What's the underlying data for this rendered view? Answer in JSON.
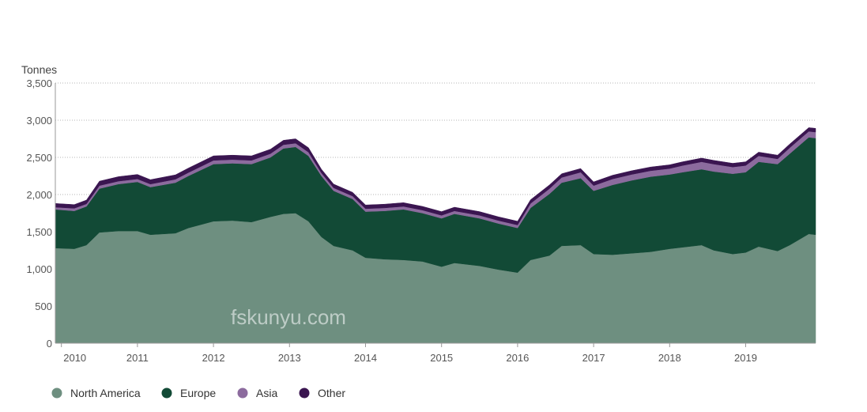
{
  "chart_data": {
    "type": "area",
    "stacked": true,
    "unit_label": "Tonnes",
    "xlabel": "",
    "ylabel": "",
    "ylim": [
      0,
      3500
    ],
    "y_ticks": [
      0,
      500,
      1000,
      1500,
      2000,
      2500,
      3000,
      3500
    ],
    "y_tick_labels": [
      "0",
      "500",
      "1,000",
      "1,500",
      "2,000",
      "2,500",
      "3,000",
      "3,500"
    ],
    "xlim": [
      2009.92,
      2019.92
    ],
    "x_ticks": [
      2010,
      2011,
      2012,
      2013,
      2014,
      2015,
      2016,
      2017,
      2018,
      2019
    ],
    "x_tick_labels": [
      "2010",
      "2011",
      "2012",
      "2013",
      "2014",
      "2015",
      "2016",
      "2017",
      "2018",
      "2019"
    ],
    "grid": "horizontal dotted",
    "legend": "bottom-left",
    "x": [
      2009.92,
      2010.17,
      2010.33,
      2010.5,
      2010.75,
      2011.0,
      2011.17,
      2011.5,
      2011.67,
      2012.0,
      2012.25,
      2012.5,
      2012.75,
      2012.92,
      2013.08,
      2013.25,
      2013.42,
      2013.58,
      2013.83,
      2014.0,
      2014.25,
      2014.5,
      2014.75,
      2015.0,
      2015.17,
      2015.5,
      2015.75,
      2016.0,
      2016.17,
      2016.42,
      2016.58,
      2016.83,
      2017.0,
      2017.25,
      2017.5,
      2017.75,
      2018.0,
      2018.17,
      2018.42,
      2018.58,
      2018.83,
      2019.0,
      2019.17,
      2019.42,
      2019.58,
      2019.83,
      2019.92
    ],
    "series": [
      {
        "name": "North America",
        "color": "#6e8f80",
        "values": [
          1280,
          1270,
          1320,
          1490,
          1510,
          1510,
          1460,
          1480,
          1550,
          1640,
          1650,
          1630,
          1700,
          1740,
          1750,
          1640,
          1430,
          1310,
          1250,
          1150,
          1130,
          1120,
          1100,
          1030,
          1080,
          1040,
          990,
          950,
          1120,
          1180,
          1310,
          1320,
          1200,
          1190,
          1210,
          1230,
          1270,
          1290,
          1320,
          1250,
          1200,
          1220,
          1300,
          1240,
          1320,
          1470,
          1460
        ]
      },
      {
        "name": "Europe",
        "color": "#124a36",
        "values": [
          520,
          510,
          520,
          590,
          630,
          660,
          640,
          680,
          700,
          770,
          770,
          780,
          800,
          880,
          890,
          880,
          820,
          740,
          690,
          620,
          650,
          680,
          650,
          650,
          660,
          640,
          620,
          600,
          700,
          830,
          850,
          900,
          850,
          940,
          980,
          1010,
          1000,
          1010,
          1020,
          1060,
          1080,
          1080,
          1140,
          1170,
          1230,
          1300,
          1300
        ]
      },
      {
        "name": "Asia",
        "color": "#8c6b9e",
        "values": [
          30,
          35,
          35,
          40,
          40,
          40,
          40,
          45,
          45,
          50,
          50,
          50,
          50,
          50,
          50,
          50,
          40,
          40,
          40,
          40,
          40,
          40,
          40,
          40,
          40,
          40,
          40,
          40,
          60,
          70,
          70,
          80,
          70,
          80,
          80,
          80,
          80,
          90,
          100,
          100,
          90,
          90,
          80,
          70,
          80,
          80,
          80
        ]
      },
      {
        "name": "Other",
        "color": "#3a1550",
        "values": [
          50,
          50,
          50,
          60,
          60,
          60,
          60,
          60,
          60,
          60,
          60,
          60,
          60,
          60,
          60,
          60,
          50,
          50,
          50,
          50,
          50,
          50,
          50,
          50,
          50,
          50,
          50,
          50,
          50,
          50,
          50,
          50,
          50,
          50,
          50,
          50,
          50,
          50,
          50,
          50,
          50,
          50,
          50,
          50,
          50,
          50,
          50
        ]
      }
    ]
  },
  "watermark": "fskunyu.com"
}
